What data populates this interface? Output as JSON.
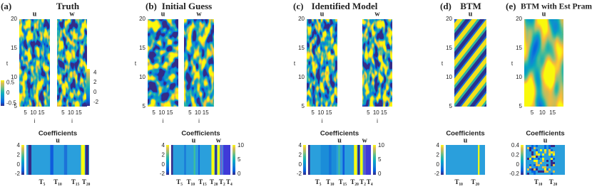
{
  "panels": [
    {
      "label": "(a)",
      "title": "Truth",
      "ylabel": "t",
      "yticks": [
        "20",
        "15",
        "10",
        "5"
      ],
      "maps": [
        {
          "title": "u",
          "xticks": [
            "5",
            "10",
            "15"
          ],
          "xlabel": "i"
        },
        {
          "title": "w",
          "xticks": [
            "5",
            "10",
            "15"
          ],
          "xlabel": "i"
        }
      ],
      "colorbar": [
        "0.5",
        "0",
        "-0.5"
      ],
      "coefficients": {
        "title": "Coefficients",
        "labels": [
          "u"
        ],
        "colorbar": [
          "4",
          "2",
          "0",
          "-2"
        ],
        "xticks": [
          "T₅",
          "T₁₀",
          "T₁₅",
          "T₂₀"
        ]
      }
    },
    {
      "label": "(b)",
      "title": "Initial Guess",
      "ylabel": "t",
      "yticks": [
        "20",
        "15",
        "10",
        "5"
      ],
      "maps": [
        {
          "title": "u",
          "xticks": [
            "5",
            "10",
            "15"
          ],
          "xlabel": "i"
        },
        {
          "title": "w",
          "xticks": [
            "5",
            "10",
            "15"
          ],
          "xlabel": "i"
        }
      ],
      "colorbar": [
        "4",
        "2",
        "0",
        "-2"
      ],
      "coefficients": {
        "title": "Coefficients",
        "labels": [
          "u",
          "w"
        ],
        "colorbar": [
          "4",
          "2",
          "0",
          "-2"
        ],
        "colorbar2": [
          "10",
          "5",
          "0"
        ],
        "xticks": [
          "T₅",
          "T₁₀",
          "T₁₅",
          "T₂₀",
          "T₂",
          "T₄"
        ]
      }
    },
    {
      "label": "(c)",
      "title": "Identified Model",
      "ylabel": "t",
      "yticks": [
        "20",
        "15",
        "10",
        "5"
      ],
      "maps": [
        {
          "title": "u",
          "xticks": [
            "5",
            "10",
            "15"
          ],
          "xlabel": "i"
        },
        {
          "title": "w",
          "xticks": [
            "5",
            "10",
            "15"
          ],
          "xlabel": "i"
        }
      ],
      "coefficients": {
        "title": "Coefficients",
        "labels": [
          "u",
          "w"
        ],
        "colorbar": [
          "4",
          "2",
          "0",
          "-2"
        ],
        "colorbar2": [
          "10",
          "5",
          "0"
        ],
        "xticks": [
          "T₅",
          "T₁₀",
          "T₁₅",
          "T₂₀",
          "T₂",
          "T₄"
        ]
      }
    },
    {
      "label": "(d)",
      "title": "BTM",
      "ylabel": "t",
      "yticks": [
        "20",
        "15",
        "10",
        "5"
      ],
      "maps": [
        {
          "title": "u"
        }
      ],
      "coefficients": {
        "title": "Coefficients",
        "labels": [
          "u"
        ],
        "colorbar": [
          "4",
          "2",
          "0",
          "-2"
        ],
        "xticks": [
          "T₁₀",
          "T₂₀"
        ]
      }
    },
    {
      "label": "(e)",
      "title": "BTM with Est Pram",
      "ylabel": "t",
      "yticks": [
        "20",
        "15",
        "10",
        "5"
      ],
      "maps": [
        {
          "title": "u",
          "xticks": [
            "5",
            "10",
            "15"
          ]
        }
      ],
      "coefficients": {
        "title": "Coefficients",
        "labels": [
          "u"
        ],
        "colorbar": [
          "0.4",
          "0.2",
          "0",
          "-0.2"
        ],
        "xticks": [
          "T₁₀",
          "T₂₀"
        ]
      }
    }
  ]
}
